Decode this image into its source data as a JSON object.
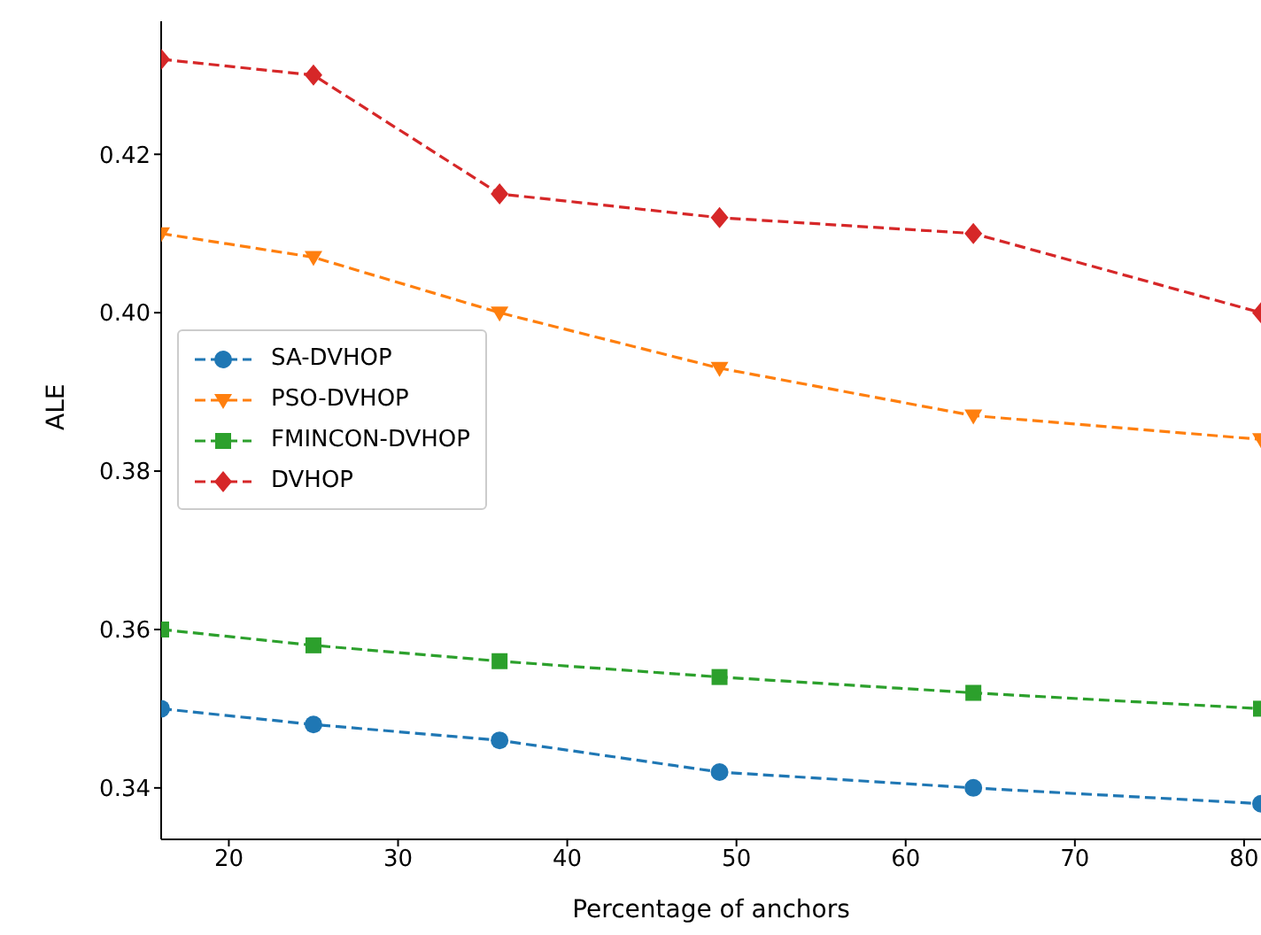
{
  "chart_data": {
    "type": "line",
    "xlabel": "Percentage of anchors",
    "ylabel": "ALE",
    "x": [
      16,
      25,
      36,
      49,
      64,
      81
    ],
    "series": [
      {
        "name": "SA-DVHOP",
        "color": "#1f77b4",
        "marker": "circle",
        "values": [
          0.35,
          0.348,
          0.346,
          0.342,
          0.34,
          0.338
        ]
      },
      {
        "name": "PSO-DVHOP",
        "color": "#ff7f0e",
        "marker": "triangle",
        "values": [
          0.41,
          0.407,
          0.4,
          0.393,
          0.387,
          0.384
        ]
      },
      {
        "name": "FMINCON-DVHOP",
        "color": "#2ca02c",
        "marker": "square",
        "values": [
          0.36,
          0.358,
          0.356,
          0.354,
          0.352,
          0.35
        ]
      },
      {
        "name": "DVHOP",
        "color": "#d62728",
        "marker": "diamond",
        "values": [
          0.432,
          0.43,
          0.415,
          0.412,
          0.41,
          0.4
        ]
      }
    ],
    "xlim": [
      16,
      81
    ],
    "ylim": [
      0.3335,
      0.4368
    ],
    "xticks": [
      20,
      30,
      40,
      50,
      60,
      70,
      80
    ],
    "yticks": [
      {
        "value": 0.34,
        "label": "0.34"
      },
      {
        "value": 0.36,
        "label": "0.36"
      },
      {
        "value": 0.38,
        "label": "0.38"
      },
      {
        "value": 0.4,
        "label": "0.40"
      },
      {
        "value": 0.42,
        "label": "0.42"
      }
    ],
    "legend": "center left",
    "line_style": "dashed",
    "grid": false
  }
}
